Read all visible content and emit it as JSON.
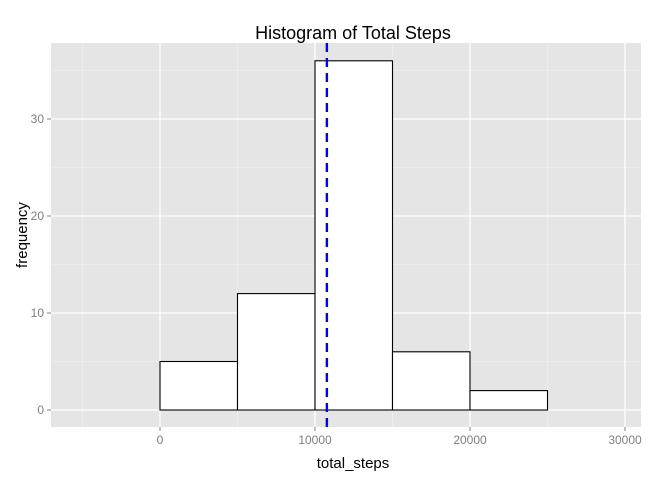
{
  "chart_data": {
    "type": "bar",
    "subtype": "histogram",
    "title": "Histogram of Total Steps",
    "xlabel": "total_steps",
    "ylabel": "frequency",
    "xlim": [
      -5000,
      30000
    ],
    "ylim": [
      0,
      38.5
    ],
    "bin_width": 5000,
    "bins": [
      {
        "x_start": -5000,
        "x_end": 0,
        "count": 0
      },
      {
        "x_start": 0,
        "x_end": 5000,
        "count": 5
      },
      {
        "x_start": 5000,
        "x_end": 10000,
        "count": 12
      },
      {
        "x_start": 10000,
        "x_end": 15000,
        "count": 36
      },
      {
        "x_start": 15000,
        "x_end": 20000,
        "count": 6
      },
      {
        "x_start": 20000,
        "x_end": 25000,
        "count": 2
      },
      {
        "x_start": 25000,
        "x_end": 30000,
        "count": 0
      }
    ],
    "x_ticks": [
      0,
      10000,
      20000,
      30000
    ],
    "x_tick_labels": [
      "0",
      "10000",
      "20000",
      "30000"
    ],
    "y_ticks": [
      0,
      10,
      20,
      30
    ],
    "y_tick_labels": [
      "0",
      "10",
      "20",
      "30"
    ],
    "reference_line": {
      "x": 10766,
      "style": "dashed"
    },
    "grid": true,
    "colors": {
      "panel_background": "#e5e5e5",
      "grid_major": "#ffffff",
      "grid_minor": "#f2f2f2",
      "bar_fill": "#ffffff",
      "bar_stroke": "#000000",
      "reference_line": "#0000ff"
    }
  }
}
